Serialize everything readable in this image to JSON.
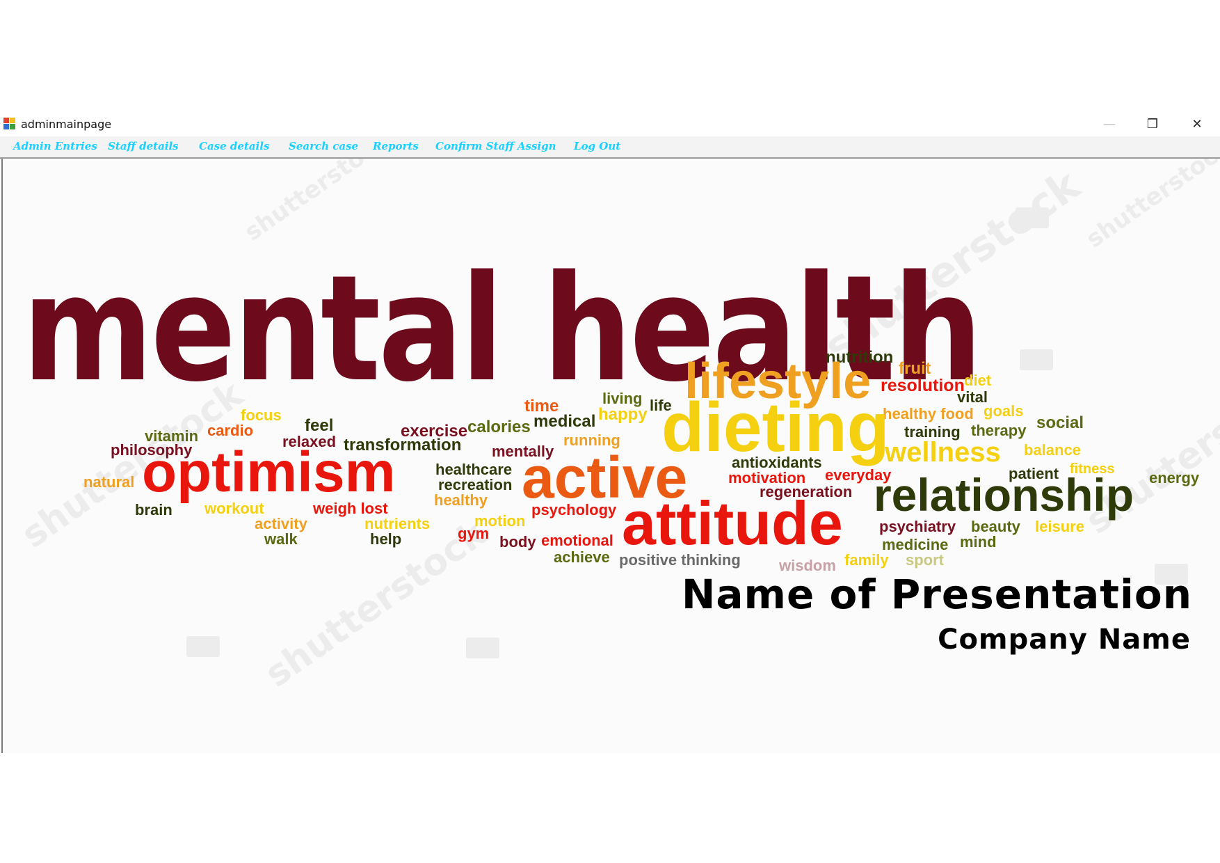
{
  "window": {
    "title": "adminmainpage",
    "controls": {
      "minimize": "—",
      "restore": "❐",
      "close": "✕"
    }
  },
  "menu": {
    "items": [
      "Admin Entries",
      "Staff details",
      "Case details",
      "Search case",
      "Reports",
      "Confirm Staff Assign",
      "Log Out"
    ]
  },
  "banner": {
    "main_title": "mental health",
    "presentation_title": "Name of Presentation",
    "company_name": "Company Name",
    "watermark": "shutterstock",
    "words": {
      "nutrition": "nutrition",
      "fruit": "fruit",
      "lifestyle": "lifestyle",
      "resolution": "resolution",
      "diet": "diet",
      "vital": "vital",
      "time": "time",
      "living": "living",
      "life": "life",
      "healthy_food": "healthy food",
      "goals": "goals",
      "focus": "focus",
      "feel": "feel",
      "medical": "medical",
      "happy": "happy",
      "dieting": "dieting",
      "social": "social",
      "vitamin": "vitamin",
      "cardio": "cardio",
      "exercise": "exercise",
      "calories": "calories",
      "training": "training",
      "therapy": "therapy",
      "philosophy": "philosophy",
      "relaxed": "relaxed",
      "transformation": "transformation",
      "running": "running",
      "wellness": "wellness",
      "balance": "balance",
      "mentally": "mentally",
      "optimism": "optimism",
      "active": "active",
      "antioxidants": "antioxidants",
      "fitness": "fitness",
      "natural": "natural",
      "healthcare": "healthcare",
      "patient": "patient",
      "energy": "energy",
      "recreation": "recreation",
      "motivation": "motivation",
      "everyday": "everyday",
      "regeneration": "regeneration",
      "relationship": "relationship",
      "healthy": "healthy",
      "brain": "brain",
      "workout": "workout",
      "weigh_lost": "weigh lost",
      "psychology": "psychology",
      "attitude": "attitude",
      "activity": "activity",
      "nutrients": "nutrients",
      "motion": "motion",
      "psychiatry": "psychiatry",
      "beauty": "beauty",
      "leisure": "leisure",
      "walk": "walk",
      "help": "help",
      "gym": "gym",
      "body": "body",
      "emotional": "emotional",
      "medicine": "medicine",
      "mind": "mind",
      "achieve": "achieve",
      "positive_thinking": "positive thinking",
      "wisdom": "wisdom",
      "family": "family",
      "sport": "sport"
    }
  },
  "colors": {
    "menu_text": "#1ad0ff",
    "title": "#6d0b1d",
    "red": "#e8160c",
    "orange": "#ea5a12",
    "amber": "#f0a020",
    "yellow": "#f4d010",
    "olive": "#5a6a10",
    "dark_green": "#2e3a0a",
    "maroon": "#7a1020"
  }
}
